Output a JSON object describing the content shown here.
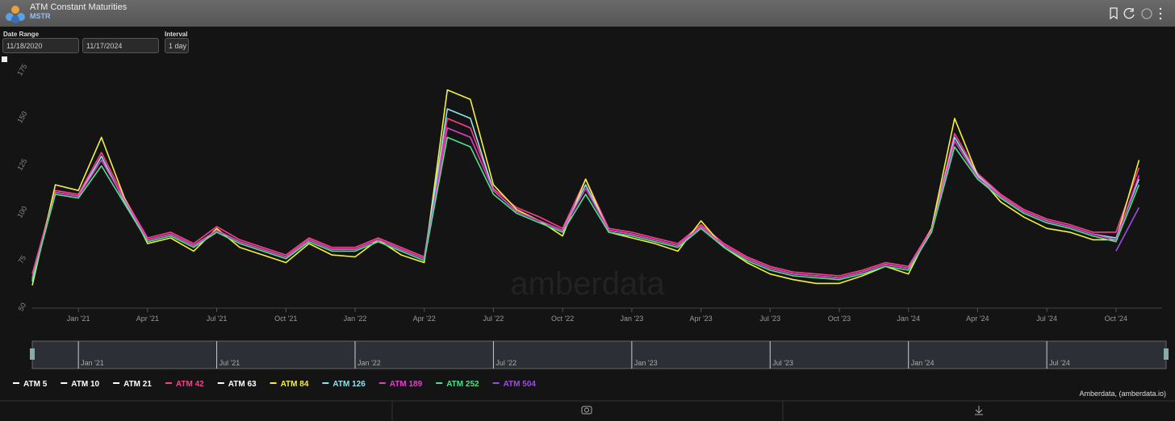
{
  "header": {
    "title": "ATM Constant Maturities",
    "subtitle": "MSTR"
  },
  "controls": {
    "date_range_label": "Date Range",
    "start_date": "11/18/2020",
    "end_date": "11/17/2024",
    "interval_label": "Interval",
    "interval": "1 day"
  },
  "footer": "Amberdata, (amberdata.io)",
  "chart_data": {
    "type": "line",
    "watermark": "amberdata",
    "x": [
      "2020-11",
      "2020-12",
      "2021-01",
      "2021-02",
      "2021-03",
      "2021-04",
      "2021-05",
      "2021-06",
      "2021-07",
      "2021-08",
      "2021-09",
      "2021-10",
      "2021-11",
      "2021-12",
      "2022-01",
      "2022-02",
      "2022-03",
      "2022-04",
      "2022-05",
      "2022-06",
      "2022-07",
      "2022-08",
      "2022-09",
      "2022-10",
      "2022-11",
      "2022-12",
      "2023-01",
      "2023-02",
      "2023-03",
      "2023-04",
      "2023-05",
      "2023-06",
      "2023-07",
      "2023-08",
      "2023-09",
      "2023-10",
      "2023-11",
      "2023-12",
      "2024-01",
      "2024-02",
      "2024-03",
      "2024-04",
      "2024-05",
      "2024-06",
      "2024-07",
      "2024-08",
      "2024-09",
      "2024-10",
      "2024-11"
    ],
    "xlim": [
      "2020-11",
      "2024-12"
    ],
    "xticks": [
      {
        "value": "2021-01",
        "label": "Jan '21"
      },
      {
        "value": "2021-04",
        "label": "Apr '21"
      },
      {
        "value": "2021-07",
        "label": "Jul '21"
      },
      {
        "value": "2021-10",
        "label": "Oct '21"
      },
      {
        "value": "2022-01",
        "label": "Jan '22"
      },
      {
        "value": "2022-04",
        "label": "Apr '22"
      },
      {
        "value": "2022-07",
        "label": "Jul '22"
      },
      {
        "value": "2022-10",
        "label": "Oct '22"
      },
      {
        "value": "2023-01",
        "label": "Jan '23"
      },
      {
        "value": "2023-04",
        "label": "Apr '23"
      },
      {
        "value": "2023-07",
        "label": "Jul '23"
      },
      {
        "value": "2023-10",
        "label": "Oct '23"
      },
      {
        "value": "2024-01",
        "label": "Jan '24"
      },
      {
        "value": "2024-04",
        "label": "Apr '24"
      },
      {
        "value": "2024-07",
        "label": "Jul '24"
      },
      {
        "value": "2024-10",
        "label": "Oct '24"
      }
    ],
    "navigator_xticks": [
      {
        "value": "2021-01",
        "label": "Jan '21"
      },
      {
        "value": "2021-07",
        "label": "Jul '21"
      },
      {
        "value": "2022-01",
        "label": "Jan '22"
      },
      {
        "value": "2022-07",
        "label": "Jul '22"
      },
      {
        "value": "2023-01",
        "label": "Jan '23"
      },
      {
        "value": "2023-07",
        "label": "Jul '23"
      },
      {
        "value": "2024-01",
        "label": "Jan '24"
      },
      {
        "value": "2024-07",
        "label": "Jul '24"
      }
    ],
    "ylim": [
      50,
      175
    ],
    "yticks": [
      50,
      75,
      100,
      125,
      150,
      175
    ],
    "series": [
      {
        "name": "ATM 5",
        "color": "#ffffff",
        "visible": false
      },
      {
        "name": "ATM 10",
        "color": "#ffffff",
        "visible": false
      },
      {
        "name": "ATM 21",
        "color": "#ffffff",
        "visible": false
      },
      {
        "name": "ATM 42",
        "color": "#ff3d8b",
        "values": [
          68,
          112,
          110,
          132,
          108,
          87,
          90,
          84,
          93,
          86,
          82,
          78,
          87,
          82,
          82,
          87,
          82,
          77,
          150,
          145,
          113,
          103,
          98,
          92,
          118,
          92,
          90,
          87,
          84,
          94,
          84,
          77,
          72,
          69,
          68,
          67,
          70,
          74,
          72,
          92,
          142,
          121,
          110,
          102,
          97,
          94,
          90,
          90,
          124
        ]
      },
      {
        "name": "ATM 63",
        "color": "#ffffff",
        "visible": false
      },
      {
        "name": "ATM 84",
        "color": "#f4f23c",
        "values": [
          62,
          115,
          112,
          140,
          108,
          84,
          87,
          80,
          92,
          82,
          78,
          74,
          84,
          78,
          77,
          86,
          78,
          74,
          165,
          160,
          115,
          102,
          96,
          88,
          118,
          90,
          87,
          84,
          80,
          96,
          82,
          74,
          68,
          65,
          63,
          63,
          67,
          72,
          68,
          92,
          150,
          120,
          106,
          98,
          92,
          90,
          86,
          86,
          128
        ]
      },
      {
        "name": "ATM 126",
        "color": "#8fe3ee",
        "values": [
          64,
          111,
          109,
          130,
          106,
          86,
          89,
          83,
          91,
          85,
          81,
          77,
          86,
          81,
          81,
          86,
          81,
          76,
          155,
          150,
          112,
          101,
          96,
          91,
          115,
          91,
          89,
          86,
          83,
          93,
          83,
          76,
          71,
          68,
          67,
          66,
          69,
          73,
          71,
          91,
          140,
          120,
          109,
          101,
          96,
          93,
          89,
          87,
          118
        ]
      },
      {
        "name": "ATM 189",
        "color": "#e040c8",
        "values": [
          66,
          111,
          109,
          128,
          107,
          86,
          89,
          83,
          91,
          85,
          81,
          77,
          86,
          81,
          81,
          86,
          81,
          76,
          145,
          140,
          112,
          101,
          96,
          91,
          113,
          91,
          89,
          86,
          83,
          93,
          83,
          76,
          71,
          68,
          67,
          66,
          69,
          73,
          71,
          91,
          138,
          119,
          109,
          101,
          96,
          93,
          89,
          86,
          120
        ]
      },
      {
        "name": "ATM 252",
        "color": "#4fe08c",
        "values": [
          65,
          110,
          108,
          125,
          105,
          85,
          88,
          82,
          90,
          84,
          80,
          76,
          85,
          80,
          80,
          85,
          80,
          75,
          140,
          135,
          110,
          100,
          95,
          90,
          110,
          90,
          88,
          85,
          82,
          92,
          82,
          75,
          70,
          67,
          66,
          65,
          68,
          72,
          70,
          90,
          135,
          118,
          108,
          100,
          95,
          92,
          88,
          85,
          115
        ]
      },
      {
        "name": "ATM 504",
        "color": "#9b4de0",
        "values": [
          null,
          null,
          null,
          null,
          null,
          null,
          null,
          null,
          null,
          null,
          null,
          null,
          null,
          null,
          null,
          null,
          null,
          null,
          null,
          null,
          null,
          null,
          null,
          null,
          null,
          null,
          null,
          null,
          null,
          null,
          null,
          null,
          null,
          null,
          null,
          null,
          null,
          null,
          null,
          null,
          null,
          null,
          null,
          null,
          null,
          null,
          null,
          80,
          103
        ]
      }
    ]
  }
}
